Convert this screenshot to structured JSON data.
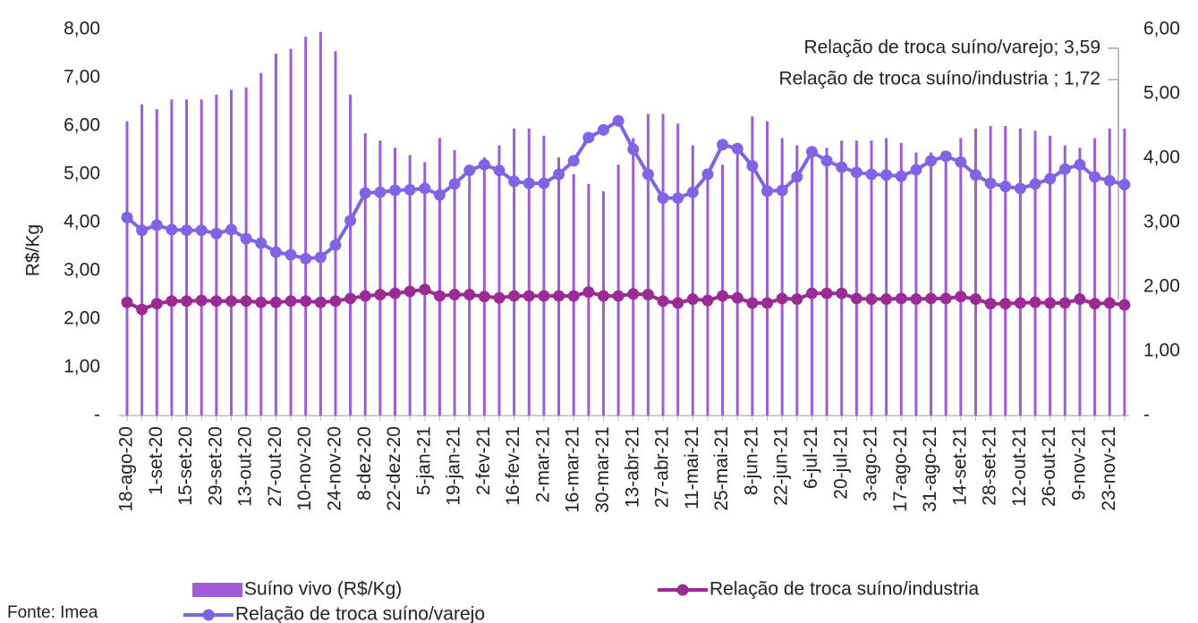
{
  "chart_data": {
    "type": "combo",
    "y_label": "R$/Kg",
    "source": "Fonte: Imea",
    "annotations": [
      "Relação de troca suíno/varejo; 3,59",
      "Relação de troca suíno/industria ; 1,72"
    ],
    "categories": [
      "18-ago-20",
      null,
      "1-set-20",
      null,
      "15-set-20",
      null,
      "29-set-20",
      null,
      "13-out-20",
      null,
      "27-out-20",
      null,
      "10-nov-20",
      null,
      "24-nov-20",
      null,
      "8-dez-20",
      null,
      "22-dez-20",
      null,
      "5-jan-21",
      null,
      "19-jan-21",
      null,
      "2-fev-21",
      null,
      "16-fev-21",
      null,
      "2-mar-21",
      null,
      "16-mar-21",
      null,
      "30-mar-21",
      null,
      "13-abr-21",
      null,
      "27-abr-21",
      null,
      "11-mai-21",
      null,
      "25-mai-21",
      null,
      "8-jun-21",
      null,
      "22-jun-21",
      null,
      "6-jul-21",
      null,
      "20-jul-21",
      null,
      "3-ago-21",
      null,
      "17-ago-21",
      null,
      "31-ago-21",
      null,
      "14-set-21",
      null,
      "28-set-21",
      null,
      "12-out-21",
      null,
      "26-out-21",
      null,
      "9-nov-21",
      null,
      "23-nov-21",
      null
    ],
    "series": [
      {
        "name": "Suíno vivo (R$/Kg)",
        "type": "bar",
        "axis": "y",
        "color": "#a05cd8",
        "values": [
          6.1,
          6.45,
          6.35,
          6.55,
          6.55,
          6.55,
          6.65,
          6.75,
          6.8,
          7.1,
          7.5,
          7.6,
          7.85,
          7.95,
          7.55,
          6.65,
          5.85,
          5.7,
          5.55,
          5.4,
          5.25,
          5.75,
          5.5,
          5.2,
          5.35,
          5.6,
          5.95,
          5.95,
          5.8,
          5.35,
          5.0,
          4.8,
          4.65,
          5.2,
          5.75,
          6.25,
          6.25,
          6.05,
          5.6,
          5.1,
          5.2,
          5.55,
          6.2,
          6.1,
          5.75,
          5.6,
          5.45,
          5.55,
          5.7,
          5.7,
          5.7,
          5.75,
          5.65,
          5.45,
          5.45,
          5.4,
          5.75,
          5.95,
          6.0,
          6.0,
          5.95,
          5.9,
          5.8,
          5.6,
          5.55,
          5.75,
          5.95,
          5.95
        ]
      },
      {
        "name": "Relação de troca suíno/industria",
        "type": "line",
        "axis": "y2",
        "color": "#9c2a95",
        "values": [
          1.76,
          1.65,
          1.74,
          1.78,
          1.78,
          1.79,
          1.78,
          1.78,
          1.78,
          1.76,
          1.76,
          1.78,
          1.78,
          1.76,
          1.78,
          1.82,
          1.86,
          1.88,
          1.9,
          1.93,
          1.96,
          1.86,
          1.88,
          1.88,
          1.85,
          1.83,
          1.86,
          1.86,
          1.86,
          1.86,
          1.86,
          1.92,
          1.86,
          1.86,
          1.89,
          1.88,
          1.78,
          1.75,
          1.81,
          1.79,
          1.86,
          1.83,
          1.75,
          1.75,
          1.82,
          1.81,
          1.9,
          1.9,
          1.9,
          1.82,
          1.81,
          1.81,
          1.82,
          1.81,
          1.82,
          1.82,
          1.85,
          1.81,
          1.74,
          1.74,
          1.75,
          1.76,
          1.75,
          1.75,
          1.81,
          1.74,
          1.75,
          1.72
        ]
      },
      {
        "name": "Relação de troca suíno/varejo",
        "type": "line",
        "axis": "y2",
        "color": "#8064e6",
        "values": [
          3.08,
          2.88,
          2.96,
          2.89,
          2.88,
          2.88,
          2.83,
          2.89,
          2.75,
          2.68,
          2.54,
          2.5,
          2.44,
          2.46,
          2.65,
          3.03,
          3.46,
          3.47,
          3.5,
          3.51,
          3.53,
          3.43,
          3.6,
          3.81,
          3.9,
          3.81,
          3.64,
          3.61,
          3.61,
          3.75,
          3.96,
          4.32,
          4.44,
          4.58,
          4.14,
          3.75,
          3.38,
          3.38,
          3.47,
          3.75,
          4.21,
          4.15,
          3.88,
          3.49,
          3.5,
          3.71,
          4.1,
          3.96,
          3.86,
          3.78,
          3.75,
          3.74,
          3.72,
          3.82,
          3.96,
          4.03,
          3.94,
          3.74,
          3.61,
          3.56,
          3.53,
          3.6,
          3.68,
          3.83,
          3.9,
          3.71,
          3.65,
          3.59
        ]
      }
    ],
    "ylim": [
      0,
      8
    ],
    "yticks": [
      {
        "value": 0,
        "label": "-"
      },
      {
        "value": 1,
        "label": "1,00"
      },
      {
        "value": 2,
        "label": "2,00"
      },
      {
        "value": 3,
        "label": "3,00"
      },
      {
        "value": 4,
        "label": "4,00"
      },
      {
        "value": 5,
        "label": "5,00"
      },
      {
        "value": 6,
        "label": "6,00"
      },
      {
        "value": 7,
        "label": "7,00"
      },
      {
        "value": 8,
        "label": "8,00"
      }
    ],
    "y2lim": [
      0,
      6
    ],
    "y2ticks": [
      {
        "value": 0,
        "label": "-"
      },
      {
        "value": 1,
        "label": "1,00"
      },
      {
        "value": 2,
        "label": "2,00"
      },
      {
        "value": 3,
        "label": "3,00"
      },
      {
        "value": 4,
        "label": "4,00"
      },
      {
        "value": 5,
        "label": "5,00"
      },
      {
        "value": 6,
        "label": "6,00"
      }
    ]
  }
}
